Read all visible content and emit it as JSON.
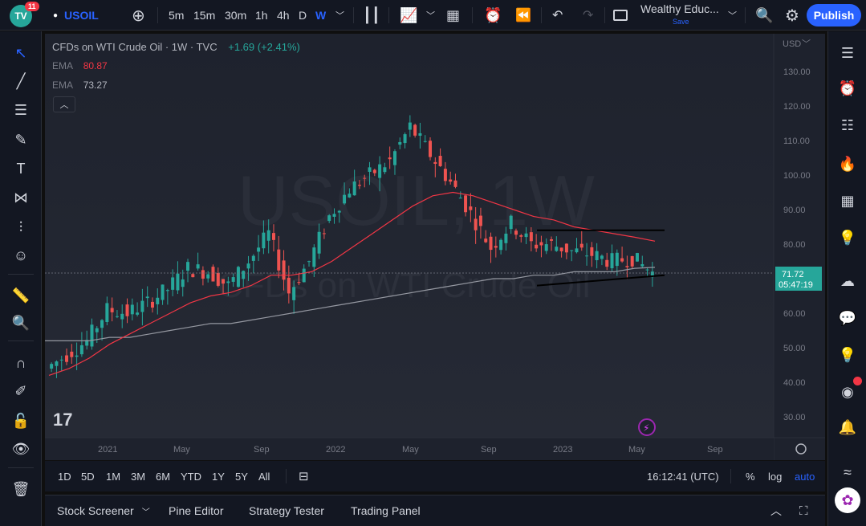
{
  "topbar": {
    "logo_text": "TV",
    "logo_badge": "11",
    "symbol": "USOIL",
    "timeframes": [
      "5m",
      "15m",
      "30m",
      "1h",
      "4h",
      "D",
      "W"
    ],
    "active_timeframe": "W",
    "layout_name": "Wealthy Educ...",
    "layout_sub": "Save",
    "publish_label": "Publish"
  },
  "chart_header": {
    "title": "CFDs on WTI Crude Oil · 1W · TVC",
    "change": "+1.69 (+2.41%)",
    "ema1_label": "EMA",
    "ema1_value": "80.87",
    "ema2_label": "EMA",
    "ema2_value": "73.27",
    "watermark_symbol": "USOIL, 1W",
    "watermark_desc": "CFDs on WTI Crude Oil"
  },
  "price_axis": {
    "currency": "USD",
    "ticks": [
      "130.00",
      "120.00",
      "110.00",
      "100.00",
      "90.00",
      "80.00",
      "70.00",
      "60.00",
      "50.00",
      "40.00",
      "30.00"
    ],
    "current_price": "71.72",
    "countdown": "05:47:19"
  },
  "time_axis": {
    "ticks": [
      "2021",
      "May",
      "Sep",
      "2022",
      "May",
      "Sep",
      "2023",
      "May",
      "Sep"
    ]
  },
  "bottom_toolbar": {
    "ranges": [
      "1D",
      "5D",
      "1M",
      "3M",
      "6M",
      "YTD",
      "1Y",
      "5Y",
      "All"
    ],
    "time": "16:12:41 (UTC)",
    "percent": "%",
    "log": "log",
    "auto": "auto"
  },
  "panel_tabs": [
    "Stock Screener",
    "Pine Editor",
    "Strategy Tester",
    "Trading Panel"
  ],
  "colors": {
    "up": "#26a69a",
    "down": "#ef5350",
    "ema_fast": "#f23645",
    "ema_slow": "#9598a1",
    "accent": "#2962ff"
  },
  "chart_data": {
    "type": "candlestick",
    "x": [
      "2020-11",
      "2020-12",
      "2021-01",
      "2021-02",
      "2021-03",
      "2021-04",
      "2021-05",
      "2021-06",
      "2021-07",
      "2021-08",
      "2021-09",
      "2021-10",
      "2021-11",
      "2021-12",
      "2022-01",
      "2022-02",
      "2022-03",
      "2022-04",
      "2022-05",
      "2022-06",
      "2022-07",
      "2022-08",
      "2022-09",
      "2022-10",
      "2022-11",
      "2022-12",
      "2023-01",
      "2023-02",
      "2023-03",
      "2023-04",
      "2023-05"
    ],
    "close": [
      44,
      48,
      52,
      61,
      60,
      63,
      67,
      73,
      72,
      68,
      75,
      83,
      66,
      75,
      88,
      96,
      100,
      104,
      114,
      106,
      98,
      89,
      79,
      86,
      80,
      80,
      78,
      77,
      75,
      76,
      71.72
    ],
    "ema_fast": [
      42,
      44,
      47,
      51,
      54,
      57,
      60,
      63,
      65,
      66,
      68,
      71,
      71,
      72,
      75,
      79,
      83,
      87,
      91,
      94,
      95,
      94,
      92,
      90,
      88,
      87,
      85,
      84,
      83,
      82,
      80.87
    ],
    "ema_slow": [
      52,
      52,
      52,
      53,
      53,
      54,
      55,
      56,
      57,
      57,
      58,
      59,
      60,
      61,
      62,
      63,
      64,
      65,
      66,
      67,
      68,
      69,
      70,
      70,
      71,
      71,
      72,
      72,
      72,
      73,
      73.27
    ],
    "ylim": [
      25,
      135
    ],
    "trendlines": [
      {
        "from": [
          "2022-11",
          84
        ],
        "to": [
          "2023-05",
          84
        ]
      },
      {
        "from": [
          "2022-11",
          68
        ],
        "to": [
          "2023-05",
          71
        ]
      }
    ]
  }
}
